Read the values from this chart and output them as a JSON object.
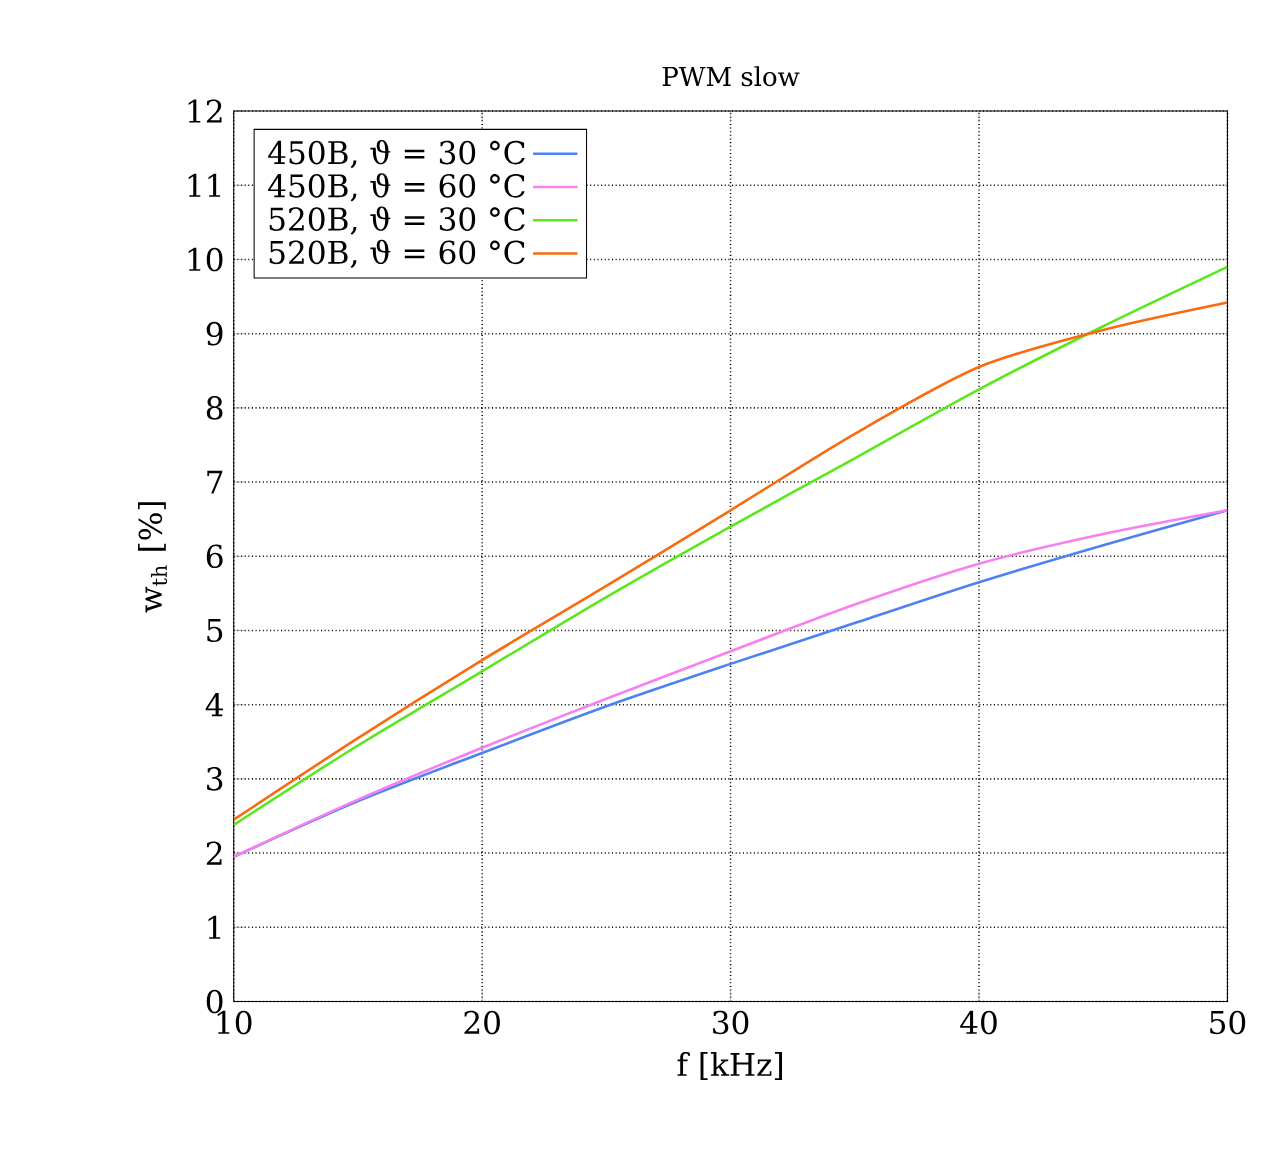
{
  "chart_data": {
    "type": "line",
    "title": "PWM slow",
    "xlabel": "f [kHz]",
    "ylabel": "w$_{th}$ [%]",
    "x": [
      10,
      15,
      20,
      25,
      30,
      35,
      40,
      45,
      50
    ],
    "series": [
      {
        "name": "450B, ϑ = 30 °C",
        "color": "#4c83f0",
        "values": [
          1.95,
          2.7,
          3.35,
          3.98,
          4.55,
          5.1,
          5.65,
          6.15,
          6.62
        ]
      },
      {
        "name": "450B, ϑ = 60 °C",
        "color": "#f77ff0",
        "values": [
          1.95,
          2.72,
          3.42,
          4.08,
          4.72,
          5.35,
          5.9,
          6.3,
          6.62
        ]
      },
      {
        "name": "520B, ϑ = 30 °C",
        "color": "#5ae81c",
        "values": [
          2.38,
          3.45,
          4.45,
          5.45,
          6.4,
          7.32,
          8.25,
          9.1,
          9.9
        ]
      },
      {
        "name": "520B, ϑ = 60 °C",
        "color": "#fa6a10",
        "values": [
          2.45,
          3.55,
          4.6,
          5.6,
          6.62,
          7.65,
          8.55,
          9.05,
          9.42
        ]
      }
    ],
    "xlim": [
      10,
      50
    ],
    "ylim": [
      0,
      12
    ],
    "xticks": [
      10,
      20,
      30,
      40,
      50
    ],
    "yticks": [
      0,
      1,
      2,
      3,
      4,
      5,
      6,
      7,
      8,
      9,
      10,
      11,
      12
    ],
    "grid": true,
    "legend": "top left",
    "marker": "none",
    "line_style": "solid"
  }
}
